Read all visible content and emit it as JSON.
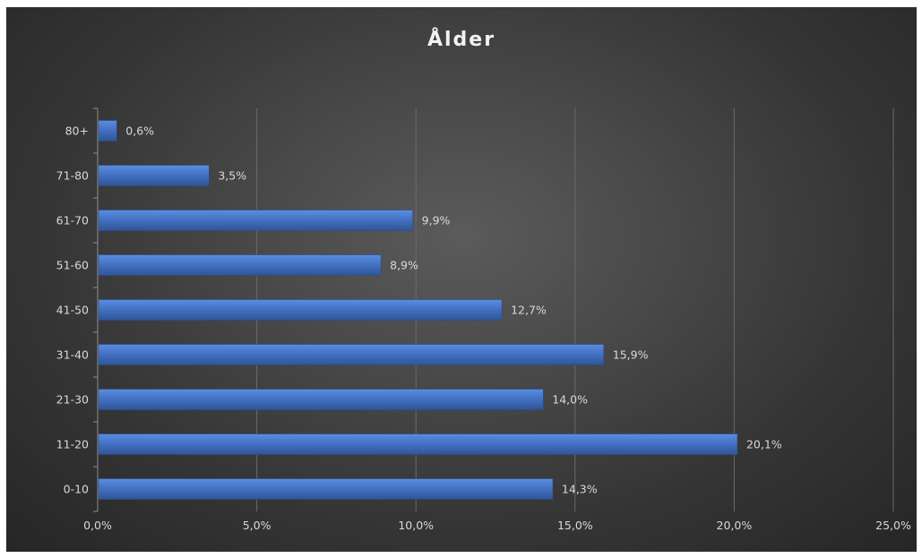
{
  "chart_data": {
    "type": "bar",
    "orientation": "horizontal",
    "title": "Ålder",
    "categories": [
      "80+",
      "71-80",
      "61-70",
      "51-60",
      "41-50",
      "31-40",
      "21-30",
      "11-20",
      "0-10"
    ],
    "values": [
      0.6,
      3.5,
      9.9,
      8.9,
      12.7,
      15.9,
      14.0,
      20.1,
      14.3
    ],
    "value_labels": [
      "0,6%",
      "3,5%",
      "9,9%",
      "8,9%",
      "12,7%",
      "15,9%",
      "14,0%",
      "20,1%",
      "14,3%"
    ],
    "xlim": [
      0,
      25
    ],
    "x_ticks": [
      0,
      5,
      10,
      15,
      20,
      25
    ],
    "x_tick_labels": [
      "0,0%",
      "5,0%",
      "10,0%",
      "15,0%",
      "20,0%",
      "25,0%"
    ],
    "xlabel": "",
    "ylabel": "",
    "grid": "vertical",
    "legend": "none",
    "colors": {
      "bar": "#4472c4",
      "bar_light": "#5b8ee0",
      "bar_dark": "#2f5597",
      "grid": "#6a6a6a",
      "text": "#d9d9d9",
      "title": "#f2f2f2"
    }
  }
}
